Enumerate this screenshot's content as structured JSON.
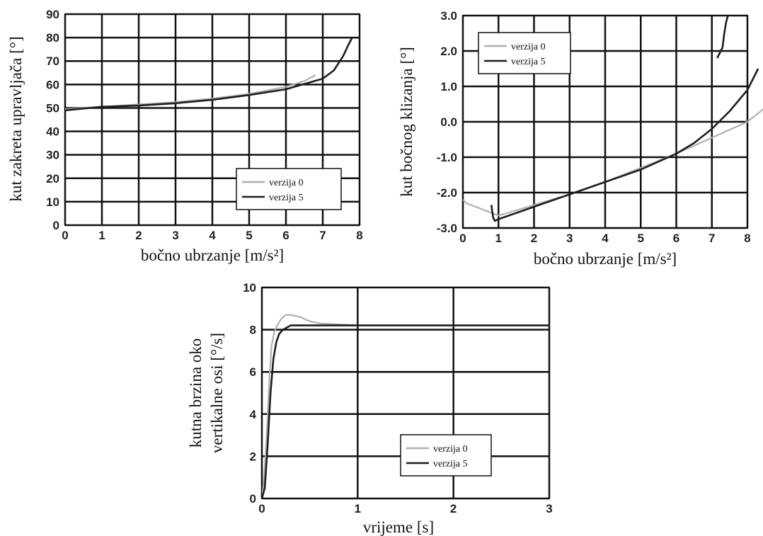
{
  "colors": {
    "verzija_0": "#b0b0b0",
    "verzija_5": "#1e1e1e",
    "grid": "#111111"
  },
  "chart_data": [
    {
      "type": "line",
      "xlabel": "bočno ubrzanje [m/s²]",
      "ylabel": "kut zakreta upravljača [°]",
      "xlim": [
        0,
        8
      ],
      "ylim": [
        0,
        90
      ],
      "x_ticks": [
        "0",
        "1",
        "2",
        "3",
        "4",
        "5",
        "6",
        "7",
        "8"
      ],
      "y_ticks": [
        "0",
        "10",
        "20",
        "30",
        "40",
        "50",
        "60",
        "70",
        "80",
        "90"
      ],
      "legend_position": "bottom-right",
      "grid": true,
      "series": [
        {
          "name": "verzija 0",
          "x": [
            0,
            1,
            2,
            3,
            4,
            5,
            6,
            6.5,
            6.8
          ],
          "y": [
            49.5,
            50.5,
            51.5,
            52.5,
            54,
            56,
            59,
            61.5,
            64
          ]
        },
        {
          "name": "verzija 5",
          "x": [
            0,
            1,
            2,
            3,
            4,
            5,
            6,
            7,
            7.3,
            7.55,
            7.7,
            7.8
          ],
          "y": [
            49,
            50.5,
            51,
            52,
            53.5,
            55.5,
            58,
            62.5,
            66,
            72,
            77,
            80
          ]
        }
      ]
    },
    {
      "type": "line",
      "xlabel": "bočno ubrzanje [m/s²]",
      "ylabel": "kut bočnog klizanja [°]",
      "xlim": [
        0,
        8
      ],
      "ylim": [
        -3.0,
        3.0
      ],
      "x_ticks": [
        "0",
        "1",
        "2",
        "3",
        "4",
        "5",
        "6",
        "7",
        "8"
      ],
      "y_ticks": [
        "-3.0",
        "-2.0",
        "-1.0",
        "0.0",
        "1.0",
        "2.0",
        "3.0"
      ],
      "legend_position": "top-left",
      "grid": true,
      "series": [
        {
          "name": "verzija 0",
          "x": [
            0,
            0.1,
            1,
            2,
            3,
            4,
            5,
            6,
            7,
            8,
            8.5
          ],
          "y": [
            -2.2,
            -2.3,
            -2.65,
            -2.35,
            -2.05,
            -1.7,
            -1.3,
            -0.9,
            -0.45,
            0.0,
            0.4
          ]
        },
        {
          "name": "verzija 5",
          "x": [
            0.8,
            0.85,
            0.9,
            1,
            2,
            3,
            4,
            5,
            6,
            6.5,
            7,
            7.5,
            8,
            8.3
          ],
          "y": [
            -2.35,
            -2.7,
            -2.8,
            -2.75,
            -2.4,
            -2.05,
            -1.7,
            -1.35,
            -0.9,
            -0.6,
            -0.2,
            0.3,
            0.9,
            1.5
          ]
        },
        {
          "name": "verzija 5",
          "x": [
            7.15,
            7.2,
            7.3,
            7.35,
            7.4,
            7.45
          ],
          "y": [
            1.8,
            1.9,
            2.1,
            2.5,
            2.8,
            3.0
          ]
        }
      ]
    },
    {
      "type": "line",
      "xlabel": "vrijeme [s]",
      "ylabel": "kutna brzina oko vertikalne osi [°/s]",
      "ylabel_lines": [
        "kutna brzina oko",
        "vertikalne osi [°/s]"
      ],
      "xlim": [
        0,
        3
      ],
      "ylim": [
        0,
        10
      ],
      "x_ticks": [
        "0",
        "1",
        "2",
        "3"
      ],
      "y_ticks": [
        "0",
        "2",
        "4",
        "6",
        "8",
        "10"
      ],
      "legend_position": "bottom-right",
      "grid": true,
      "series": [
        {
          "name": "verzija 0",
          "x": [
            0,
            0.02,
            0.05,
            0.08,
            0.1,
            0.13,
            0.16,
            0.2,
            0.25,
            0.3,
            0.4,
            0.5,
            0.6,
            0.8,
            1,
            2,
            3
          ],
          "y": [
            0,
            0.8,
            3,
            5.8,
            7.2,
            7.9,
            8.2,
            8.5,
            8.7,
            8.7,
            8.6,
            8.4,
            8.3,
            8.25,
            8.2,
            8.2,
            8.2
          ]
        },
        {
          "name": "verzija 5",
          "x": [
            0,
            0.03,
            0.06,
            0.09,
            0.12,
            0.15,
            0.18,
            0.22,
            0.26,
            0.3,
            0.4,
            0.6,
            1,
            2,
            3
          ],
          "y": [
            0,
            0.5,
            2.5,
            5,
            6.6,
            7.4,
            7.8,
            8.0,
            8.1,
            8.2,
            8.2,
            8.2,
            8.2,
            8.2,
            8.2
          ]
        }
      ]
    }
  ]
}
